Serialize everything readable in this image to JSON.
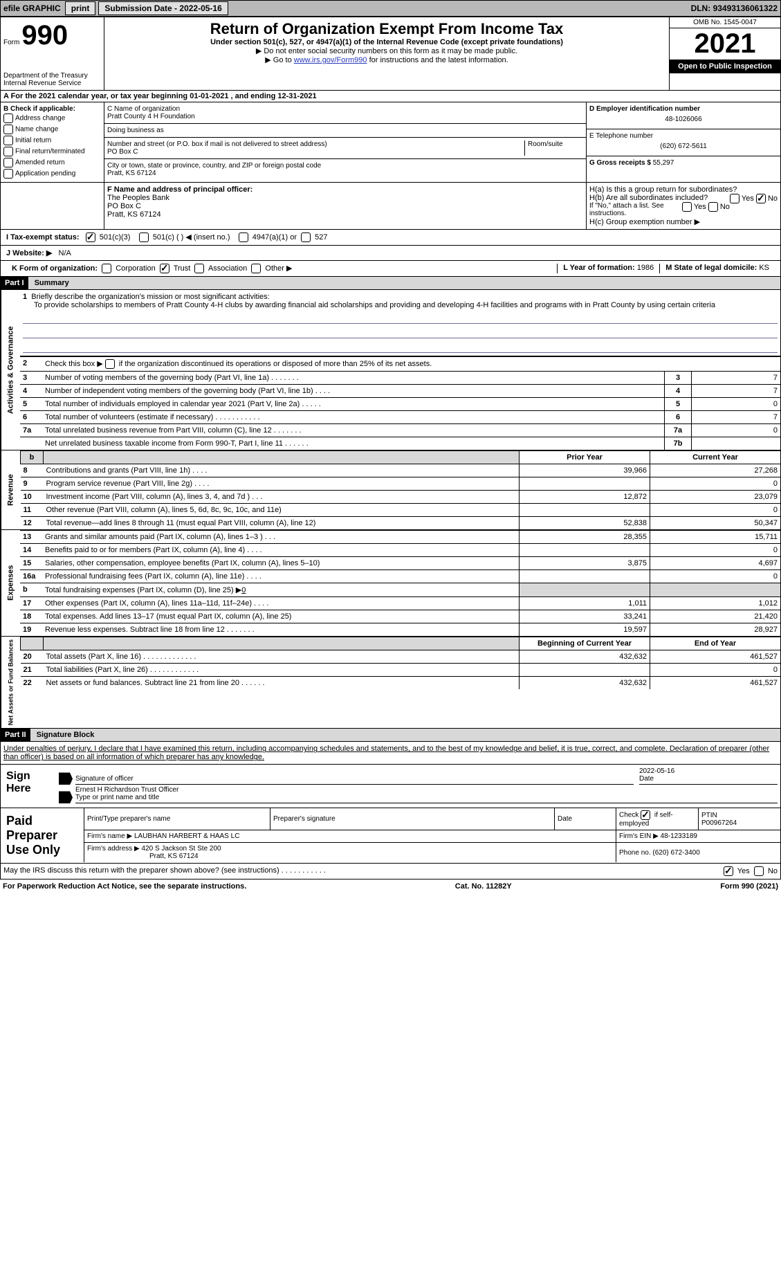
{
  "topbar": {
    "efile": "efile GRAPHIC",
    "print": "print",
    "sub_date_label": "Submission Date - ",
    "sub_date": "2022-05-16",
    "dln_label": "DLN: ",
    "dln": "93493136061322"
  },
  "header": {
    "form_word": "Form",
    "form_num": "990",
    "title": "Return of Organization Exempt From Income Tax",
    "subtitle": "Under section 501(c), 527, or 4947(a)(1) of the Internal Revenue Code (except private foundations)",
    "note1": "▶ Do not enter social security numbers on this form as it may be made public.",
    "note2_pre": "▶ Go to ",
    "note2_link": "www.irs.gov/Form990",
    "note2_post": " for instructions and the latest information.",
    "dept": "Department of the Treasury",
    "irs": "Internal Revenue Service",
    "omb": "OMB No. 1545-0047",
    "year": "2021",
    "open": "Open to Public Inspection"
  },
  "sectionA": {
    "text_pre": "A For the 2021 calendar year, or tax year beginning ",
    "begin": "01-01-2021",
    "mid": "   , and ending ",
    "end": "12-31-2021"
  },
  "boxB": {
    "label": "B Check if applicable:",
    "items": [
      "Address change",
      "Name change",
      "Initial return",
      "Final return/terminated",
      "Amended return",
      "Application pending"
    ]
  },
  "boxC": {
    "name_label": "C Name of organization",
    "name": "Pratt County 4 H Foundation",
    "dba_label": "Doing business as",
    "dba": "",
    "addr_label": "Number and street (or P.O. box if mail is not delivered to street address)",
    "room_label": "Room/suite",
    "addr": "PO Box C",
    "city_label": "City or town, state or province, country, and ZIP or foreign postal code",
    "city": "Pratt, KS  67124"
  },
  "boxD": {
    "label": "D Employer identification number",
    "value": "48-1026066"
  },
  "boxE": {
    "label": "E Telephone number",
    "value": "(620) 672-5611"
  },
  "boxG": {
    "label": "G Gross receipts $ ",
    "value": "55,297"
  },
  "boxF": {
    "label": "F Name and address of principal officer:",
    "name": "The Peoples Bank",
    "addr1": "PO Box C",
    "addr2": "Pratt, KS  67124"
  },
  "boxH": {
    "ha": "H(a)  Is this a group return for subordinates?",
    "hb": "H(b)  Are all subordinates included?",
    "hb_note": "If \"No,\" attach a list. See instructions.",
    "hc": "H(c)  Group exemption number ▶",
    "yes": "Yes",
    "no": "No"
  },
  "boxI": {
    "label": "I  Tax-exempt status:",
    "o1": "501(c)(3)",
    "o2": "501(c) (   ) ◀ (insert no.)",
    "o3": "4947(a)(1) or",
    "o4": "527"
  },
  "boxJ": {
    "label": "J  Website: ▶",
    "value": "N/A"
  },
  "boxK": {
    "label": "K Form of organization:",
    "o1": "Corporation",
    "o2": "Trust",
    "o3": "Association",
    "o4": "Other ▶"
  },
  "boxL": {
    "label": "L Year of formation: ",
    "value": "1986"
  },
  "boxM": {
    "label": "M State of legal domicile: ",
    "value": "KS"
  },
  "part1": {
    "header": "Part I",
    "title": "Summary",
    "side_gov": "Activities & Governance",
    "side_rev": "Revenue",
    "side_exp": "Expenses",
    "side_net": "Net Assets or Fund Balances",
    "line1_label": "Briefly describe the organization's mission or most significant activities:",
    "line1_text": "To provide scholarships to members of Pratt County 4-H clubs by awarding financial aid scholarships and providing and developing 4-H facilities and programs with in Pratt County by using certain criteria",
    "line2": "Check this box ▶      if the organization discontinued its operations or disposed of more than 25% of its net assets.",
    "lines_gov": [
      {
        "n": "3",
        "t": "Number of voting members of the governing body (Part VI, line 1a)   .     .     .     .     .     .     .",
        "c": "3",
        "v": "7"
      },
      {
        "n": "4",
        "t": "Number of independent voting members of the governing body (Part VI, line 1b)    .     .     .     .",
        "c": "4",
        "v": "7"
      },
      {
        "n": "5",
        "t": "Total number of individuals employed in calendar year 2021 (Part V, line 2a)    .     .     .     .     .",
        "c": "5",
        "v": "0"
      },
      {
        "n": "6",
        "t": "Total number of volunteers (estimate if necessary)     .     .     .     .     .     .     .     .     .     .     .",
        "c": "6",
        "v": "7"
      },
      {
        "n": "7a",
        "t": "Total unrelated business revenue from Part VIII, column (C), line 12    .     .     .     .     .     .     .",
        "c": "7a",
        "v": "0"
      },
      {
        "n": "",
        "t": "Net unrelated business taxable income from Form 990-T, Part I, line 11   .     .     .     .     .     .",
        "c": "7b",
        "v": ""
      }
    ],
    "col_prior": "Prior Year",
    "col_current": "Current Year",
    "lines_rev": [
      {
        "n": "8",
        "t": "Contributions and grants (Part VIII, line 1h)    .     .     .     .",
        "p": "39,966",
        "c": "27,268"
      },
      {
        "n": "9",
        "t": "Program service revenue (Part VIII, line 2g)    .     .     .     .",
        "p": "",
        "c": "0"
      },
      {
        "n": "10",
        "t": "Investment income (Part VIII, column (A), lines 3, 4, and 7d )    .     .     .",
        "p": "12,872",
        "c": "23,079"
      },
      {
        "n": "11",
        "t": "Other revenue (Part VIII, column (A), lines 5, 6d, 8c, 9c, 10c, and 11e)",
        "p": "",
        "c": "0"
      },
      {
        "n": "12",
        "t": "Total revenue—add lines 8 through 11 (must equal Part VIII, column (A), line 12)",
        "p": "52,838",
        "c": "50,347"
      }
    ],
    "lines_exp": [
      {
        "n": "13",
        "t": "Grants and similar amounts paid (Part IX, column (A), lines 1–3 )   .     .     .",
        "p": "28,355",
        "c": "15,711"
      },
      {
        "n": "14",
        "t": "Benefits paid to or for members (Part IX, column (A), line 4)   .     .     .     .",
        "p": "",
        "c": "0"
      },
      {
        "n": "15",
        "t": "Salaries, other compensation, employee benefits (Part IX, column (A), lines 5–10)",
        "p": "3,875",
        "c": "4,697"
      },
      {
        "n": "16a",
        "t": "Professional fundraising fees (Part IX, column (A), line 11e)   .     .     .     .",
        "p": "",
        "c": "0"
      },
      {
        "n": "b",
        "t": "Total fundraising expenses (Part IX, column (D), line 25) ▶0",
        "p": "shade",
        "c": "shade"
      },
      {
        "n": "17",
        "t": "Other expenses (Part IX, column (A), lines 11a–11d, 11f–24e)   .     .     .     .",
        "p": "1,011",
        "c": "1,012"
      },
      {
        "n": "18",
        "t": "Total expenses. Add lines 13–17 (must equal Part IX, column (A), line 25)",
        "p": "33,241",
        "c": "21,420"
      },
      {
        "n": "19",
        "t": "Revenue less expenses. Subtract line 18 from line 12   .     .     .     .     .     .     .",
        "p": "19,597",
        "c": "28,927"
      }
    ],
    "col_begin": "Beginning of Current Year",
    "col_end": "End of Year",
    "lines_net": [
      {
        "n": "20",
        "t": "Total assets (Part X, line 16)   .     .     .     .     .     .     .     .     .     .     .     .     .",
        "p": "432,632",
        "c": "461,527"
      },
      {
        "n": "21",
        "t": "Total liabilities (Part X, line 26)   .     .     .     .     .     .     .     .     .     .     .     .",
        "p": "",
        "c": "0"
      },
      {
        "n": "22",
        "t": "Net assets or fund balances. Subtract line 21 from line 20   .     .     .     .     .     .",
        "p": "432,632",
        "c": "461,527"
      }
    ]
  },
  "part2": {
    "header": "Part II",
    "title": "Signature Block",
    "declaration": "Under penalties of perjury, I declare that I have examined this return, including accompanying schedules and statements, and to the best of my knowledge and belief, it is true, correct, and complete. Declaration of preparer (other than officer) is based on all information of which preparer has any knowledge.",
    "sign_here": "Sign Here",
    "sig_officer": "Signature of officer",
    "sig_date": "2022-05-16",
    "date_label": "Date",
    "name_title": "Ernest H Richardson  Trust Officer",
    "name_label": "Type or print name and title",
    "paid": "Paid Preparer Use Only",
    "pt_name_label": "Print/Type preparer's name",
    "pt_name": "",
    "pt_sig_label": "Preparer's signature",
    "pt_date_label": "Date",
    "pt_check": "Check          if self-employed",
    "ptin_label": "PTIN",
    "ptin": "P00967264",
    "firm_name_label": "Firm's name     ▶ ",
    "firm_name": "LAUBHAN HARBERT & HAAS LC",
    "firm_ein_label": "Firm's EIN ▶ ",
    "firm_ein": "48-1233189",
    "firm_addr_label": "Firm's address ▶ ",
    "firm_addr": "420 S Jackson St Ste 200",
    "firm_city": "Pratt, KS  67124",
    "phone_label": "Phone no. ",
    "phone": "(620) 672-3400",
    "discuss": "May the IRS discuss this return with the preparer shown above? (see instructions)    .     .     .     .     .     .     .     .     .     .     .",
    "yes": "Yes",
    "no": "No"
  },
  "footer": {
    "left": "For Paperwork Reduction Act Notice, see the separate instructions.",
    "mid": "Cat. No. 11282Y",
    "right": "Form 990 (2021)"
  }
}
